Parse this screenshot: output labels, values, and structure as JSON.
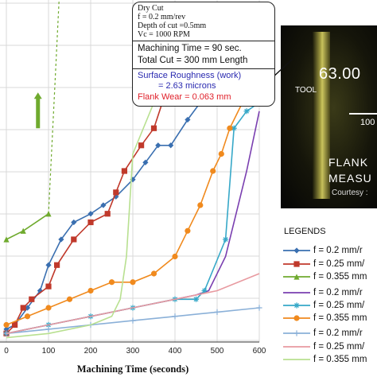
{
  "chart_data": {
    "type": "line",
    "xlabel": "Machining Time (seconds)",
    "ylabel": "",
    "title": "",
    "xlim": [
      0,
      600
    ],
    "ylim": [
      0,
      0.4
    ],
    "x_ticks": [
      "0",
      "100",
      "200",
      "300",
      "400",
      "500",
      "600"
    ],
    "grid": true,
    "legend_title": "LEGENDS",
    "series": [
      {
        "name": "f = 0.2 mm/r",
        "color": "#3a6fb0",
        "marker": "diamond",
        "x": [
          0,
          20,
          50,
          80,
          100,
          130,
          160,
          200,
          230,
          260,
          300,
          330,
          360,
          390,
          430,
          460,
          510,
          520,
          550,
          580,
          600
        ],
        "y": [
          0.015,
          0.02,
          0.04,
          0.06,
          0.09,
          0.12,
          0.14,
          0.15,
          0.16,
          0.17,
          0.19,
          0.21,
          0.23,
          0.23,
          0.26,
          0.28,
          0.29,
          0.32,
          0.34,
          0.335,
          0.335
        ]
      },
      {
        "name": "f = 0.25 mm/",
        "color": "#c0392b",
        "marker": "square",
        "x": [
          0,
          20,
          40,
          60,
          100,
          120,
          160,
          200,
          240,
          260,
          280,
          320,
          350,
          370,
          380
        ],
        "y": [
          0.01,
          0.02,
          0.04,
          0.05,
          0.065,
          0.09,
          0.12,
          0.14,
          0.15,
          0.175,
          0.2,
          0.23,
          0.25,
          0.28,
          0.31
        ]
      },
      {
        "name": "f = 0.355 mm",
        "color": "#6faa2e",
        "marker": "triangle",
        "x": [
          0,
          40,
          100
        ],
        "y": [
          0.12,
          0.13,
          0.15
        ]
      },
      {
        "name": "f = 0.2 mm/r",
        "color": "#7a3fb0",
        "marker": "none",
        "x": [
          0,
          100,
          200,
          300,
          400,
          450,
          480,
          520,
          570,
          600
        ],
        "y": [
          0.01,
          0.02,
          0.03,
          0.04,
          0.05,
          0.055,
          0.06,
          0.1,
          0.2,
          0.27
        ]
      },
      {
        "name": "f = 0.25 mm/",
        "color": "#36a8c8",
        "marker": "star",
        "x": [
          0,
          100,
          200,
          300,
          400,
          450,
          470,
          520,
          540,
          570,
          600
        ],
        "y": [
          0.01,
          0.02,
          0.03,
          0.04,
          0.05,
          0.05,
          0.06,
          0.12,
          0.25,
          0.27,
          0.28
        ]
      },
      {
        "name": "f = 0.355 mm",
        "color": "#f08a1e",
        "marker": "circle",
        "x": [
          0,
          50,
          100,
          150,
          200,
          250,
          300,
          350,
          400,
          430,
          460,
          490,
          510,
          530,
          560,
          600
        ],
        "y": [
          0.02,
          0.03,
          0.04,
          0.05,
          0.06,
          0.07,
          0.07,
          0.08,
          0.1,
          0.13,
          0.16,
          0.2,
          0.22,
          0.25,
          0.28,
          0.33
        ]
      },
      {
        "name": "f = 0.2 mm/r",
        "color": "#8ab0d8",
        "marker": "plus",
        "x": [
          0,
          100,
          200,
          300,
          400,
          500,
          600
        ],
        "y": [
          0.01,
          0.015,
          0.02,
          0.025,
          0.03,
          0.035,
          0.04
        ]
      },
      {
        "name": "f = 0.25 mm/",
        "color": "#e89aa0",
        "marker": "none",
        "x": [
          0,
          100,
          200,
          300,
          400,
          500,
          600
        ],
        "y": [
          0.01,
          0.02,
          0.03,
          0.04,
          0.05,
          0.06,
          0.08
        ]
      },
      {
        "name": "f = 0.355 mm",
        "color": "#b8e090",
        "marker": "none",
        "x": [
          0,
          100,
          200,
          250,
          270,
          285,
          300,
          350,
          400,
          450,
          500,
          550,
          600
        ],
        "y": [
          0.005,
          0.01,
          0.02,
          0.03,
          0.05,
          0.1,
          0.22,
          0.28,
          0.29,
          0.31,
          0.33,
          0.35,
          0.36
        ]
      }
    ],
    "extra_marks": [
      {
        "type": "dashed-line",
        "color": "#6faa2e",
        "x": [
          100,
          115,
          130
        ],
        "y": [
          0.15,
          0.3,
          0.45
        ]
      },
      {
        "type": "point",
        "color": "#e0202a",
        "x": 130,
        "y": 0.45
      },
      {
        "type": "arrow-up",
        "color": "#6faa2e",
        "x": 75,
        "y_from": 0.25,
        "y_to": 0.29
      }
    ]
  },
  "callout": {
    "line1": "Dry Cut",
    "line2": "f  = 0.2 mm/rev",
    "line3": "Depth of cut =0.5mm",
    "line4": "Vc  = 1000 RPM",
    "line5": "Machining Time = 90 sec.",
    "line6": "Total Cut = 300 mm Length",
    "line7": "Surface Roughness (work)",
    "line8": "= 2.63 microns",
    "line9": "Flank Wear = 0.063 mm"
  },
  "photo": {
    "measure": "63.00",
    "tool": "TOOL",
    "scale": "100",
    "caption1": "FLANK",
    "caption2": "MEASU",
    "caption3": "Courtesy :"
  },
  "colors": {
    "grid": "#d9d9d9",
    "axis": "#333333"
  }
}
